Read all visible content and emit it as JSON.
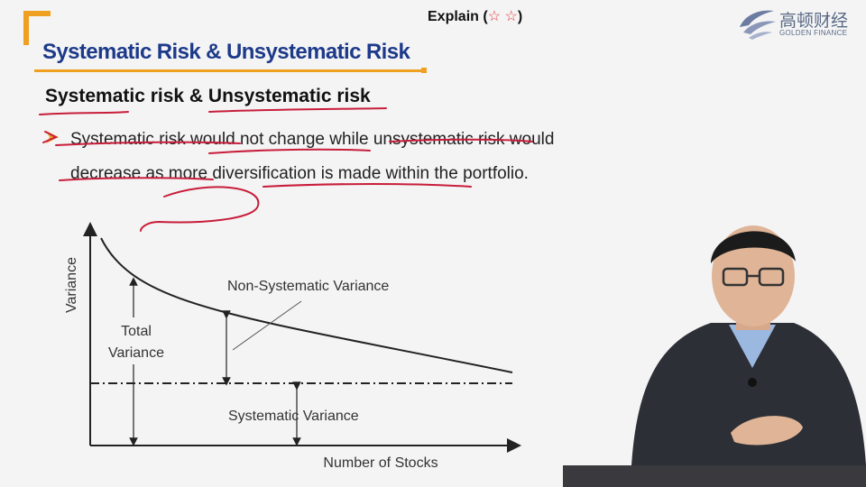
{
  "header": {
    "explain_label": "Explain (",
    "explain_stars": "☆ ☆",
    "explain_close": ")",
    "logo_cn": "高顿财经",
    "logo_en": "GOLDEN FINANCE"
  },
  "slide": {
    "title": "Systematic Risk & Unsystematic Risk",
    "subheading": "Systematic risk & Unsystematic risk",
    "bullet": "Systematic risk would not change while unsystematic risk would decrease as more diversification is made within the portfolio."
  },
  "diagram": {
    "ylabel": "Variance",
    "xlabel": "Number of Stocks",
    "total_variance_line1": "Total",
    "total_variance_line2": "Variance",
    "non_systematic_label": "Non-Systematic Variance",
    "systematic_label": "Systematic Variance"
  },
  "colors": {
    "title_blue": "#1d3a8a",
    "accent_orange": "#f0a020",
    "pen_red": "#c81e3a",
    "star_red": "#e23c3c"
  }
}
